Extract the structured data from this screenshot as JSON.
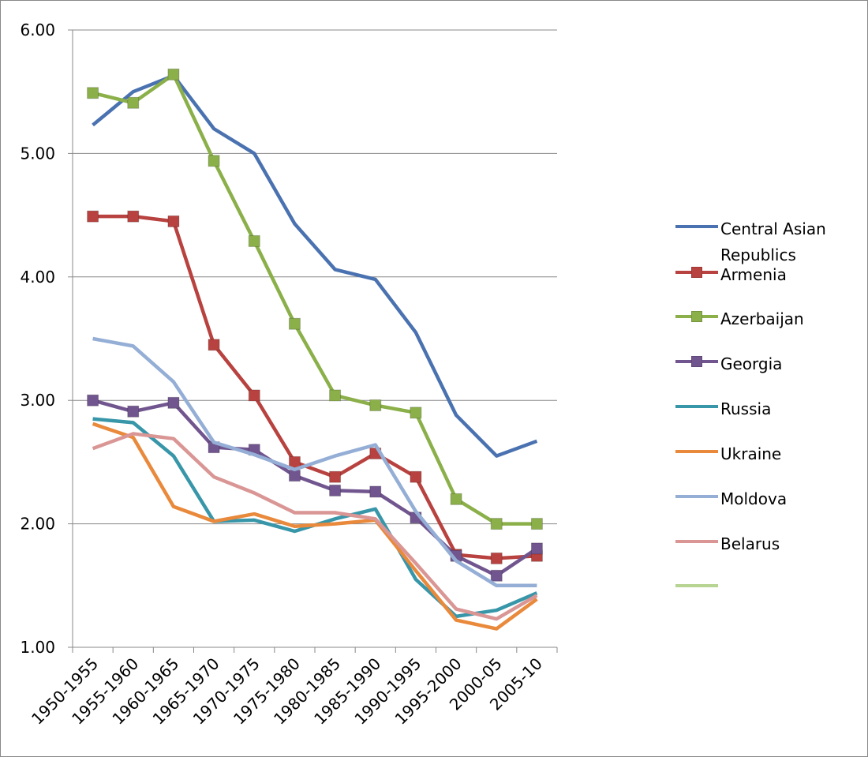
{
  "chart_data": {
    "type": "line",
    "categories": [
      "1950-1955",
      "1955-1960",
      "1960-1965",
      "1965-1970",
      "1970-1975",
      "1975-1980",
      "1980-1985",
      "1985-1990",
      "1990-1995",
      "1995-2000",
      "2000-05",
      "2005-10"
    ],
    "ylim": [
      1,
      6
    ],
    "yticks": [
      {
        "value": 1,
        "label": "1.00"
      },
      {
        "value": 2,
        "label": "2.00"
      },
      {
        "value": 3,
        "label": "3.00"
      },
      {
        "value": 4,
        "label": "4.00"
      },
      {
        "value": 5,
        "label": "5.00"
      },
      {
        "value": 6,
        "label": "6.00"
      }
    ],
    "grid": true,
    "legend": "right",
    "series": [
      {
        "name": "Central Asian Republics",
        "color": "#4a72b0",
        "marker": "none",
        "values": [
          5.23,
          5.5,
          5.63,
          5.2,
          5.0,
          4.43,
          4.06,
          3.98,
          3.55,
          2.88,
          2.55,
          2.67
        ]
      },
      {
        "name": "Armenia",
        "color": "#b8423f",
        "marker": "square",
        "values": [
          4.49,
          4.49,
          4.45,
          3.45,
          3.04,
          2.5,
          2.38,
          2.57,
          2.38,
          1.75,
          1.72,
          1.74
        ]
      },
      {
        "name": "Azerbaijan",
        "color": "#8bb04a",
        "marker": "square",
        "values": [
          5.49,
          5.41,
          5.64,
          4.94,
          4.29,
          3.62,
          3.04,
          2.96,
          2.9,
          2.2,
          2.0,
          2.0
        ]
      },
      {
        "name": "Georgia",
        "color": "#71558f",
        "marker": "square",
        "values": [
          3.0,
          2.91,
          2.98,
          2.62,
          2.6,
          2.39,
          2.27,
          2.26,
          2.05,
          1.74,
          1.58,
          1.8
        ]
      },
      {
        "name": "Russia",
        "color": "#3896a9",
        "marker": "none",
        "values": [
          2.85,
          2.82,
          2.55,
          2.02,
          2.03,
          1.94,
          2.04,
          2.12,
          1.55,
          1.25,
          1.3,
          1.44
        ]
      },
      {
        "name": "Ukraine",
        "color": "#e9893b",
        "marker": "none",
        "values": [
          2.81,
          2.7,
          2.14,
          2.02,
          2.08,
          1.98,
          2.0,
          2.03,
          1.62,
          1.22,
          1.15,
          1.39
        ]
      },
      {
        "name": "Moldova",
        "color": "#94aed6",
        "marker": "none",
        "values": [
          3.5,
          3.44,
          3.15,
          2.66,
          2.56,
          2.44,
          2.55,
          2.64,
          2.1,
          1.7,
          1.5,
          1.5
        ]
      },
      {
        "name": "Belarus",
        "color": "#d99694",
        "marker": "none",
        "values": [
          2.61,
          2.73,
          2.69,
          2.38,
          2.25,
          2.09,
          2.09,
          2.04,
          1.68,
          1.31,
          1.23,
          1.42
        ]
      }
    ]
  }
}
